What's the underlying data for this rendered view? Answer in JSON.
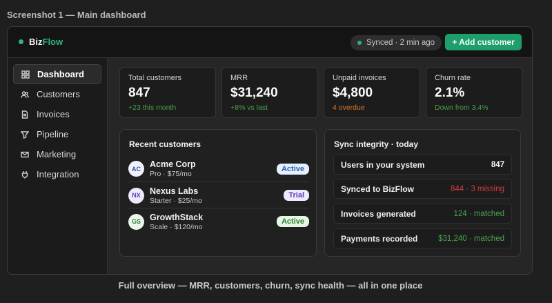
{
  "page_caption": "Screenshot 1 — Main dashboard",
  "footer_caption": "Full overview — MRR, customers, churn, sync health — all in one place",
  "colors": {
    "accent": "#2fb57a",
    "button": "#1e9e6a",
    "positive": "#47a34a",
    "warning": "#d97a1e",
    "error": "#d23a3a"
  },
  "topbar": {
    "logo_prefix": "Biz",
    "logo_suffix": "Flow",
    "sync_status": "Synced · 2 min ago",
    "add_button": "+ Add customer"
  },
  "sidebar": {
    "items": [
      {
        "label": "Dashboard",
        "icon": "grid-icon",
        "active": true
      },
      {
        "label": "Customers",
        "icon": "users-icon"
      },
      {
        "label": "Invoices",
        "icon": "document-icon"
      },
      {
        "label": "Pipeline",
        "icon": "pipeline-icon"
      },
      {
        "label": "Marketing",
        "icon": "mail-icon"
      },
      {
        "label": "Integration",
        "icon": "plug-icon"
      }
    ]
  },
  "stats": [
    {
      "label": "Total customers",
      "value": "847",
      "sub": "+23 this month",
      "tone": "positive"
    },
    {
      "label": "MRR",
      "value": "$31,240",
      "sub": "+8% vs last",
      "tone": "positive"
    },
    {
      "label": "Unpaid invoices",
      "value": "$4,800",
      "sub": "4 overdue",
      "tone": "warning"
    },
    {
      "label": "Churn rate",
      "value": "2.1%",
      "sub": "Down from 3.4%",
      "tone": "positive"
    }
  ],
  "recent_customers": {
    "title": "Recent customers",
    "rows": [
      {
        "initials": "AC",
        "name": "Acme Corp",
        "plan": "Pro · $75/mo",
        "status": "Active"
      },
      {
        "initials": "NX",
        "name": "Nexus Labs",
        "plan": "Starter · $25/mo",
        "status": "Trial"
      },
      {
        "initials": "GS",
        "name": "GrowthStack",
        "plan": "Scale · $120/mo",
        "status": "Active"
      }
    ]
  },
  "sync_integrity": {
    "title": "Sync integrity · today",
    "rows": [
      {
        "label": "Users in your system",
        "value": "847"
      },
      {
        "label": "Synced to BizFlow",
        "value": "844 · 3 missing"
      },
      {
        "label": "Invoices generated",
        "value": "124 · matched"
      },
      {
        "label": "Payments recorded",
        "value": "$31,240 · matched"
      }
    ]
  }
}
